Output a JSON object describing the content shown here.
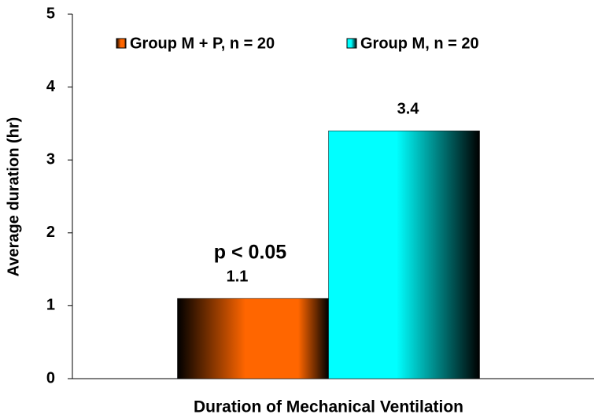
{
  "chart_data": {
    "type": "bar",
    "categories": [
      "Duration of Mechanical Ventilation"
    ],
    "series": [
      {
        "name": "Group M + P, n = 20",
        "color": "#ff6600",
        "values": [
          1.1
        ]
      },
      {
        "name": "Group M, n = 20",
        "color": "#00ffff",
        "values": [
          3.4
        ]
      }
    ],
    "y_label": "Average duration (hr)",
    "annotation": "p < 0.05",
    "ylim": [
      0,
      5
    ],
    "yticks": [
      0,
      1,
      2,
      3,
      4,
      5
    ],
    "grid": false,
    "legend": "top"
  }
}
